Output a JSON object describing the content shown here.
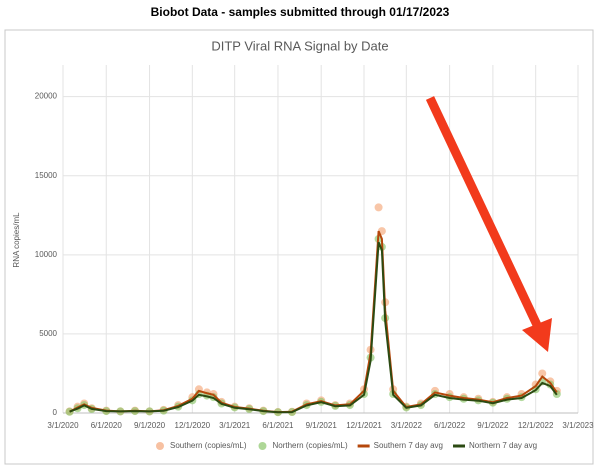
{
  "page_title": "Biobot Data - samples submitted through 01/17/2023",
  "chart_data": {
    "type": "scatter",
    "title": "DITP Viral RNA Signal by Date",
    "ylabel": "RNA copies/mL",
    "x": [
      "3/15/2020",
      "4/1/2020",
      "4/15/2020",
      "5/1/2020",
      "6/1/2020",
      "7/1/2020",
      "8/1/2020",
      "9/1/2020",
      "10/1/2020",
      "11/1/2020",
      "12/1/2020",
      "12/15/2020",
      "1/1/2021",
      "1/15/2021",
      "2/1/2021",
      "3/1/2021",
      "4/1/2021",
      "5/1/2021",
      "6/1/2021",
      "7/1/2021",
      "8/1/2021",
      "9/1/2021",
      "10/1/2021",
      "11/1/2021",
      "12/1/2021",
      "12/15/2021",
      "1/1/2022",
      "1/8/2022",
      "1/15/2022",
      "2/1/2022",
      "3/1/2022",
      "4/1/2022",
      "5/1/2022",
      "6/1/2022",
      "7/1/2022",
      "8/1/2022",
      "9/1/2022",
      "10/1/2022",
      "11/1/2022",
      "12/1/2022",
      "12/15/2022",
      "1/1/2023",
      "1/15/2023"
    ],
    "series": [
      {
        "name": "Southern (copies/mL)",
        "type": "scatter",
        "color": "#f4a77a",
        "values": [
          100,
          400,
          600,
          300,
          150,
          100,
          150,
          100,
          200,
          500,
          1000,
          1500,
          1300,
          1200,
          700,
          400,
          300,
          150,
          60,
          80,
          600,
          800,
          500,
          600,
          1500,
          4000,
          13000,
          11500,
          7000,
          1500,
          400,
          600,
          1400,
          1200,
          1000,
          900,
          700,
          1000,
          1200,
          1800,
          2500,
          2000,
          1400
        ]
      },
      {
        "name": "Northern (copies/mL)",
        "type": "scatter",
        "color": "#8cc66b",
        "values": [
          80,
          300,
          500,
          250,
          120,
          100,
          120,
          100,
          150,
          400,
          800,
          1200,
          1100,
          1000,
          600,
          350,
          250,
          120,
          50,
          60,
          500,
          700,
          450,
          500,
          1200,
          3500,
          11000,
          10500,
          6000,
          1200,
          350,
          500,
          1200,
          1000,
          900,
          800,
          650,
          900,
          1000,
          1500,
          2000,
          1800,
          1200
        ]
      },
      {
        "name": "Southern 7 day avg",
        "type": "line",
        "color": "#b5470b",
        "values": [
          90,
          350,
          550,
          320,
          150,
          100,
          140,
          100,
          180,
          450,
          900,
          1400,
          1250,
          1150,
          650,
          380,
          280,
          140,
          60,
          80,
          550,
          750,
          480,
          550,
          1400,
          3800,
          11500,
          11000,
          6500,
          1400,
          380,
          550,
          1300,
          1100,
          950,
          850,
          680,
          950,
          1100,
          1700,
          2300,
          1900,
          1300
        ]
      },
      {
        "name": "Northern 7 day avg",
        "type": "line",
        "color": "#2b4a12",
        "values": [
          80,
          280,
          480,
          260,
          120,
          100,
          120,
          100,
          140,
          380,
          780,
          1150,
          1050,
          950,
          580,
          330,
          240,
          120,
          50,
          60,
          480,
          680,
          430,
          480,
          1150,
          3300,
          10800,
          10300,
          5800,
          1150,
          330,
          480,
          1150,
          950,
          850,
          780,
          620,
          850,
          950,
          1450,
          1900,
          1700,
          1150
        ]
      }
    ],
    "xlim": [
      "3/1/2020",
      "3/1/2023"
    ],
    "xticks": [
      "3/1/2020",
      "6/1/2020",
      "9/1/2020",
      "12/1/2020",
      "3/1/2021",
      "6/1/2021",
      "9/1/2021",
      "12/1/2021",
      "3/1/2022",
      "6/1/2022",
      "9/1/2022",
      "12/1/2022",
      "3/1/2023"
    ],
    "ylim": [
      0,
      22000
    ],
    "yticks": [
      0,
      5000,
      10000,
      15000,
      20000
    ],
    "grid": true,
    "legend": "bottom"
  }
}
